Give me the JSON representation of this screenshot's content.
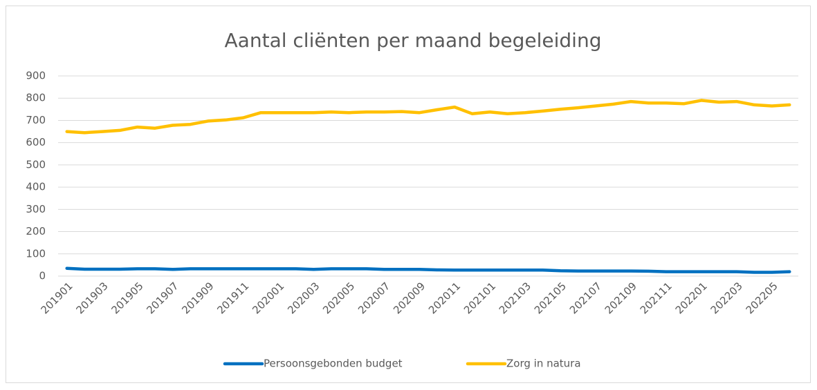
{
  "chart_data": {
    "type": "line",
    "title": "Aantal cliënten per maand begeleiding",
    "categories": [
      "201901",
      null,
      "201903",
      null,
      "201905",
      null,
      "201907",
      null,
      "201909",
      null,
      "201911",
      null,
      "202001",
      null,
      "202003",
      null,
      "202005",
      null,
      "202007",
      null,
      "202009",
      null,
      "202011",
      null,
      "202101",
      null,
      "202103",
      null,
      "202105",
      null,
      "202107",
      null,
      "202109",
      null,
      "202111",
      null,
      "202201",
      null,
      "202203",
      null,
      "202205",
      null
    ],
    "series": [
      {
        "name": "Persoonsgebonden budget",
        "color": "#0070c0",
        "values": [
          35,
          31,
          31,
          31,
          33,
          33,
          30,
          33,
          33,
          33,
          33,
          33,
          33,
          33,
          30,
          33,
          33,
          33,
          30,
          30,
          30,
          28,
          27,
          27,
          27,
          27,
          27,
          27,
          24,
          23,
          23,
          23,
          23,
          22,
          20,
          20,
          20,
          20,
          20,
          17,
          17,
          20
        ]
      },
      {
        "name": "Zorg in natura",
        "color": "#ffc000",
        "values": [
          650,
          645,
          650,
          655,
          670,
          665,
          678,
          682,
          697,
          702,
          712,
          735,
          735,
          735,
          735,
          738,
          735,
          738,
          738,
          740,
          735,
          748,
          760,
          730,
          738,
          730,
          735,
          742,
          750,
          757,
          765,
          773,
          785,
          778,
          778,
          775,
          790,
          782,
          785,
          770,
          765,
          770
        ]
      }
    ],
    "ylim": [
      0,
      900
    ],
    "yticks": [
      0,
      100,
      200,
      300,
      400,
      500,
      600,
      700,
      800,
      900
    ],
    "grid": true,
    "legend": "bottom"
  }
}
